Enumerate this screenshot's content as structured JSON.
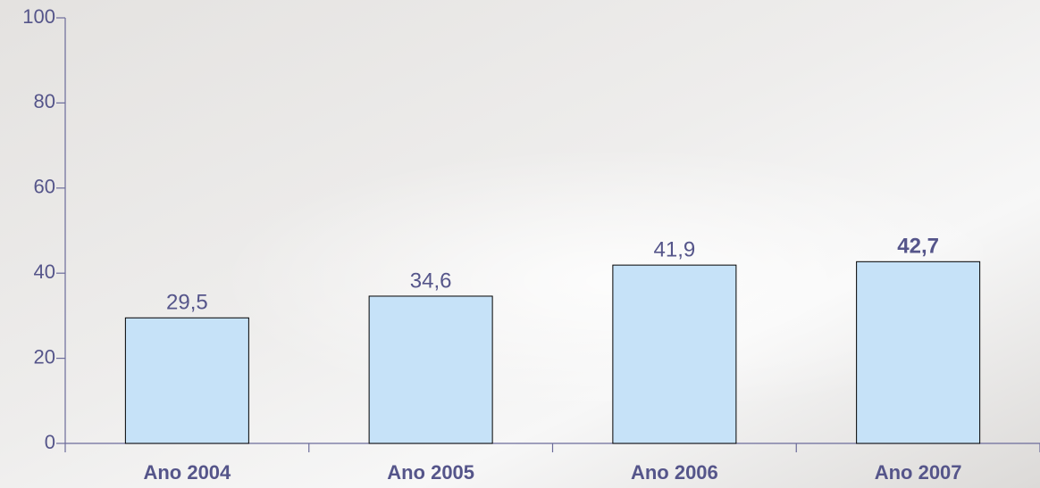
{
  "chart_data": {
    "type": "bar",
    "categories": [
      "Ano 2004",
      "Ano 2005",
      "Ano 2006",
      "Ano 2007"
    ],
    "values": [
      29.5,
      34.6,
      41.9,
      42.7
    ],
    "value_labels": [
      "29,5",
      "34,6",
      "41,9",
      "42,7"
    ],
    "color": "#c6e2f8",
    "ylim": [
      0,
      100
    ],
    "yticks": [
      0,
      20,
      40,
      60,
      80,
      100
    ],
    "grid": false
  }
}
